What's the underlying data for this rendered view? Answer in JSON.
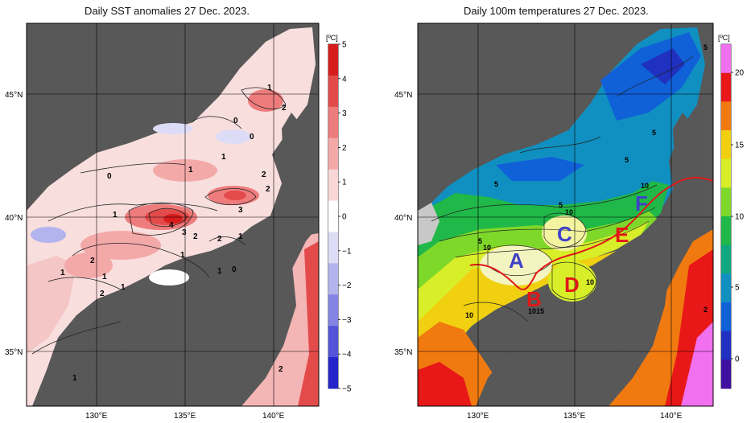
{
  "left_map": {
    "title": "Daily SST anomalies 27 Dec. 2023.",
    "unit": "[ºC]",
    "lat_labels": [
      "45°N",
      "40°N",
      "35°N"
    ],
    "lon_labels": [
      "130°E",
      "135°E",
      "140°E"
    ],
    "colorbar": {
      "ticks": [
        "5",
        "4",
        "3",
        "2",
        "1",
        "0",
        "−1",
        "−2",
        "−3",
        "−4",
        "−5"
      ],
      "colors": [
        "#d71c1c",
        "#e34b4b",
        "#ee7c7c",
        "#f4a9a9",
        "#f9d6d6",
        "#ffffff",
        "#dcdcf6",
        "#b3b3ee",
        "#8484e4",
        "#5454d8",
        "#2424cc"
      ]
    },
    "contour_labels": [
      "1",
      "2",
      "0",
      "0",
      "1",
      "1",
      "2",
      "2",
      "0",
      "1",
      "3",
      "4",
      "3",
      "2",
      "1",
      "2",
      "2",
      "1",
      "1",
      "0",
      "1",
      "1",
      "2",
      "1",
      "2",
      "1"
    ]
  },
  "right_map": {
    "title": "Daily 100m temperatures 27 Dec. 2023.",
    "unit": "[ºC]",
    "lat_labels": [
      "45°N",
      "40°N",
      "35°N"
    ],
    "lon_labels": [
      "130°E",
      "135°E",
      "140°E"
    ],
    "colorbar": {
      "ticks": [
        "20",
        "15",
        "10",
        "5",
        "0"
      ],
      "colors": [
        "#f070f0",
        "#e81818",
        "#f07a10",
        "#f0d010",
        "#d8ee28",
        "#7ed82a",
        "#20b848",
        "#10a880",
        "#1090c0",
        "#1060d8",
        "#2030c0",
        "#4010a0"
      ]
    },
    "region_labels": [
      {
        "text": "A",
        "color": "#4040c8"
      },
      {
        "text": "B",
        "color": "#e01818"
      },
      {
        "text": "C",
        "color": "#4040c8"
      },
      {
        "text": "D",
        "color": "#e01818"
      },
      {
        "text": "E",
        "color": "#e01818"
      },
      {
        "text": "F",
        "color": "#4040c8"
      }
    ],
    "contour_labels": [
      "5",
      "5",
      "5",
      "5",
      "10",
      "5",
      "10",
      "5",
      "10",
      "10",
      "10",
      "15",
      "10",
      "2"
    ]
  }
}
